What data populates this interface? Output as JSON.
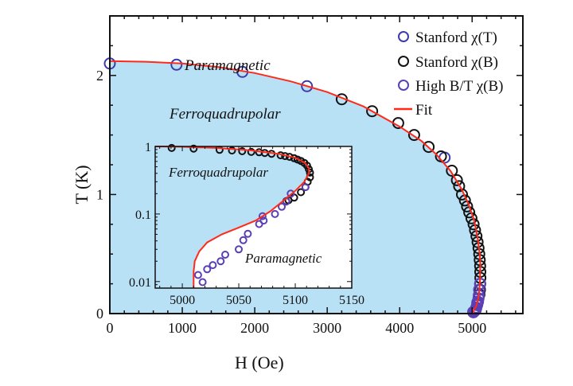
{
  "colors": {
    "fill": "#b9e1f5",
    "fit": "#ff2a1a",
    "blue_marker": "#3b3bb0",
    "purple_marker": "#5a3fb5",
    "black_marker": "#111111"
  },
  "chart_data": [
    {
      "type": "scatter",
      "xlabel": "H (Oe)",
      "ylabel": "T (K)",
      "xlim": [
        0,
        5700
      ],
      "ylim": [
        0,
        2.5
      ],
      "x_ticks": [
        "0",
        "1000",
        "2000",
        "3000",
        "4000",
        "5000"
      ],
      "y_ticks": [
        "0",
        "1",
        "2"
      ],
      "grid": false,
      "legend_position": "top-right",
      "annotations": {
        "paramagnetic": "Paramagnetic",
        "ferroquadrupolar": "Ferroquadrupolar"
      },
      "series": [
        {
          "name": "Stanford χ(T)",
          "marker": "circle-open",
          "color": "#3b3bb0",
          "points": [
            [
              0,
              2.1
            ],
            [
              920,
              2.09
            ],
            [
              1830,
              2.03
            ],
            [
              2720,
              1.91
            ],
            [
              4620,
              1.31
            ]
          ]
        },
        {
          "name": "Stanford χ(B)",
          "marker": "circle-open",
          "color": "#111111",
          "points": [
            [
              3200,
              1.8
            ],
            [
              3620,
              1.7
            ],
            [
              3980,
              1.6
            ],
            [
              4200,
              1.5
            ],
            [
              4400,
              1.4
            ],
            [
              4570,
              1.32
            ],
            [
              4720,
              1.2
            ],
            [
              4790,
              1.12
            ],
            [
              4820,
              1.07
            ],
            [
              4860,
              1.0
            ],
            [
              4900,
              0.95
            ],
            [
              4930,
              0.9
            ],
            [
              4960,
              0.85
            ],
            [
              4990,
              0.8
            ],
            [
              5020,
              0.75
            ],
            [
              5040,
              0.7
            ],
            [
              5060,
              0.65
            ],
            [
              5075,
              0.6
            ],
            [
              5088,
              0.55
            ],
            [
              5098,
              0.5
            ],
            [
              5105,
              0.45
            ],
            [
              5110,
              0.4
            ],
            [
              5112,
              0.35
            ],
            [
              5113,
              0.3
            ],
            [
              5111,
              0.25
            ],
            [
              5108,
              0.2
            ],
            [
              5100,
              0.16
            ]
          ]
        },
        {
          "name": "High B/T χ(B)",
          "marker": "circle-open",
          "color": "#5a3fb5",
          "points": [
            [
              5109,
              0.25
            ],
            [
              5096,
              0.2
            ],
            [
              5092,
              0.153
            ],
            [
              5088,
              0.128
            ],
            [
              5082,
              0.1
            ],
            [
              5071,
              0.093
            ],
            [
              5072,
              0.08
            ],
            [
              5068,
              0.071
            ],
            [
              5058,
              0.051
            ],
            [
              5054,
              0.041
            ],
            [
              5050,
              0.03
            ],
            [
              5038,
              0.025
            ],
            [
              5034,
              0.02
            ],
            [
              5027,
              0.0175
            ],
            [
              5022,
              0.0152
            ],
            [
              5014,
              0.0125
            ],
            [
              5018,
              0.0098
            ]
          ]
        },
        {
          "name": "Fit",
          "type": "line",
          "color": "#ff2a1a",
          "points": [
            [
              0,
              2.12
            ],
            [
              500,
              2.115
            ],
            [
              1000,
              2.1
            ],
            [
              1500,
              2.07
            ],
            [
              2000,
              2.02
            ],
            [
              2500,
              1.95
            ],
            [
              3000,
              1.86
            ],
            [
              3500,
              1.74
            ],
            [
              4000,
              1.57
            ],
            [
              4300,
              1.45
            ],
            [
              4500,
              1.34
            ],
            [
              4700,
              1.2
            ],
            [
              4850,
              1.05
            ],
            [
              4950,
              0.92
            ],
            [
              5030,
              0.78
            ],
            [
              5080,
              0.62
            ],
            [
              5105,
              0.5
            ],
            [
              5113,
              0.42
            ],
            [
              5110,
              0.3
            ],
            [
              5100,
              0.2
            ],
            [
              5085,
              0.13
            ],
            [
              5060,
              0.07
            ],
            [
              5040,
              0.045
            ],
            [
              5025,
              0.028
            ],
            [
              5015,
              0.016
            ],
            [
              5011,
              0.0
            ],
            [
              5010,
              0.0
            ]
          ]
        }
      ]
    },
    {
      "type": "scatter",
      "inset": true,
      "xlim": [
        4976,
        5150
      ],
      "ylim": [
        0.008,
        1
      ],
      "y_scale": "log",
      "x_ticks": [
        "5000",
        "5050",
        "5100",
        "5150"
      ],
      "y_ticks": [
        "0.01",
        "0.1",
        "1"
      ],
      "annotations": {
        "ferroquadrupolar": "Ferroquadrupolar",
        "paramagnetic": "Paramagnetic"
      },
      "series": [
        {
          "name": "Stanford χ(B)",
          "color": "#111111",
          "points": [
            [
              4990.6,
              0.95
            ],
            [
              5010,
              0.93
            ],
            [
              5033,
              0.89
            ],
            [
              5044,
              0.87
            ],
            [
              5053,
              0.85
            ],
            [
              5061,
              0.83
            ],
            [
              5068,
              0.82
            ],
            [
              5073,
              0.8
            ],
            [
              5079,
              0.78
            ],
            [
              5087,
              0.74
            ],
            [
              5091,
              0.72
            ],
            [
              5095,
              0.7
            ],
            [
              5099,
              0.67
            ],
            [
              5102,
              0.64
            ],
            [
              5105,
              0.61
            ],
            [
              5108,
              0.57
            ],
            [
              5110.5,
              0.52
            ],
            [
              5112,
              0.46
            ],
            [
              5113,
              0.41
            ],
            [
              5113,
              0.35
            ],
            [
              5111,
              0.3
            ],
            [
              5109,
              0.25
            ],
            [
              5105,
              0.21
            ],
            [
              5099,
              0.175
            ],
            [
              5094,
              0.16
            ],
            [
              5092,
              0.155
            ]
          ]
        },
        {
          "name": "High B/T χ(B)",
          "color": "#5a3fb5",
          "points": [
            [
              5109,
              0.25
            ],
            [
              5096,
              0.2
            ],
            [
              5092,
              0.153
            ],
            [
              5088,
              0.128
            ],
            [
              5082,
              0.1
            ],
            [
              5071,
              0.093
            ],
            [
              5072,
              0.08
            ],
            [
              5068,
              0.071
            ],
            [
              5058,
              0.051
            ],
            [
              5054,
              0.041
            ],
            [
              5050,
              0.03
            ],
            [
              5038,
              0.025
            ],
            [
              5034,
              0.02
            ],
            [
              5027,
              0.0175
            ],
            [
              5022,
              0.0152
            ],
            [
              5014,
              0.0125
            ],
            [
              5018,
              0.0098
            ]
          ]
        },
        {
          "name": "Fit",
          "type": "line",
          "color": "#ff2a1a",
          "points": [
            [
              4976,
              1.0
            ],
            [
              5000,
              0.99
            ],
            [
              5030,
              0.95
            ],
            [
              5060,
              0.88
            ],
            [
              5085,
              0.78
            ],
            [
              5100,
              0.68
            ],
            [
              5108,
              0.58
            ],
            [
              5112,
              0.48
            ],
            [
              5112,
              0.4
            ],
            [
              5108,
              0.3
            ],
            [
              5100,
              0.22
            ],
            [
              5090,
              0.16
            ],
            [
              5078,
              0.11
            ],
            [
              5065,
              0.08
            ],
            [
              5050,
              0.063
            ],
            [
              5035,
              0.05
            ],
            [
              5022,
              0.038
            ],
            [
              5015,
              0.028
            ],
            [
              5011,
              0.02
            ],
            [
              5010,
              0.014
            ],
            [
              5010,
              0.008
            ]
          ]
        }
      ]
    }
  ]
}
